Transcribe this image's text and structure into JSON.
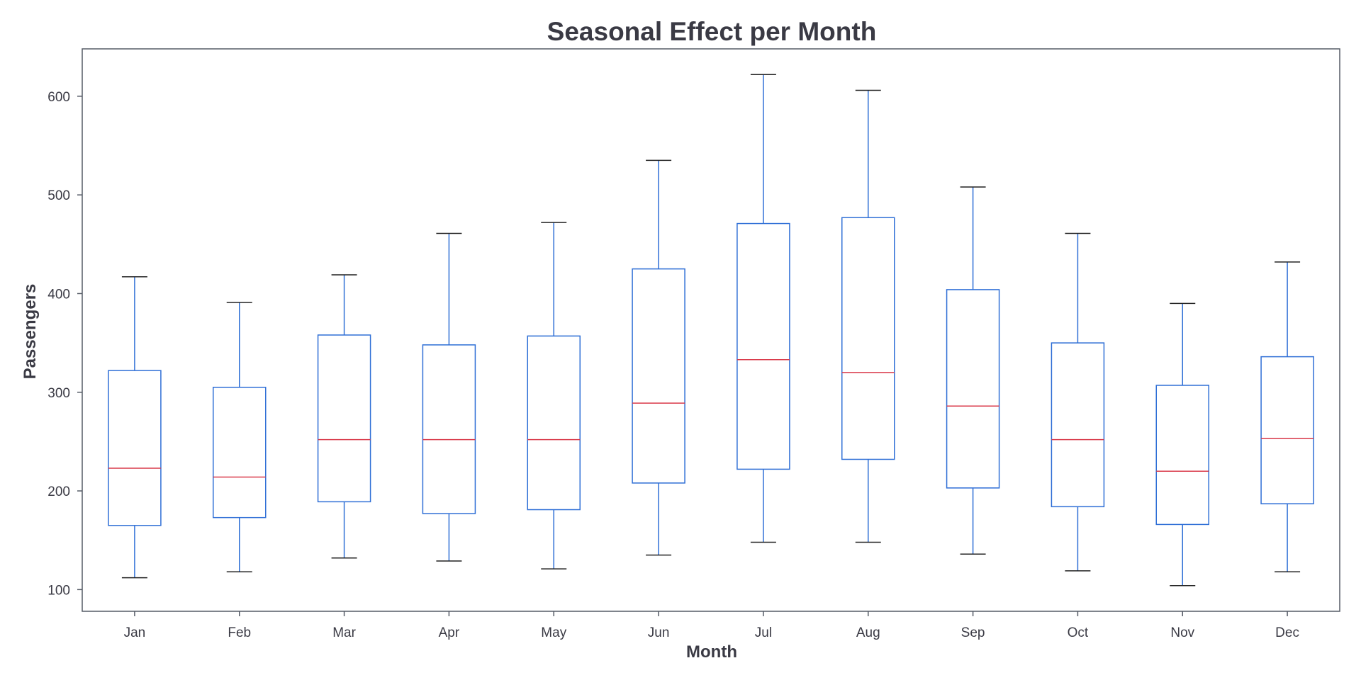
{
  "chart_data": {
    "type": "box",
    "title": "Seasonal Effect per Month",
    "xlabel": "Month",
    "ylabel": "Passengers",
    "ylim": [
      78,
      648
    ],
    "yticks": [
      100,
      200,
      300,
      400,
      500,
      600
    ],
    "grid": false,
    "legend": "none",
    "categories": [
      "Jan",
      "Feb",
      "Mar",
      "Apr",
      "May",
      "Jun",
      "Jul",
      "Aug",
      "Sep",
      "Oct",
      "Nov",
      "Dec"
    ],
    "boxes": [
      {
        "label": "Jan",
        "min": 112,
        "q1": 165,
        "median": 223,
        "q3": 322,
        "max": 417
      },
      {
        "label": "Feb",
        "min": 118,
        "q1": 173,
        "median": 214,
        "q3": 305,
        "max": 391
      },
      {
        "label": "Mar",
        "min": 132,
        "q1": 189,
        "median": 252,
        "q3": 358,
        "max": 419
      },
      {
        "label": "Apr",
        "min": 129,
        "q1": 177,
        "median": 252,
        "q3": 348,
        "max": 461
      },
      {
        "label": "May",
        "min": 121,
        "q1": 181,
        "median": 252,
        "q3": 357,
        "max": 472
      },
      {
        "label": "Jun",
        "min": 135,
        "q1": 208,
        "median": 289,
        "q3": 425,
        "max": 535
      },
      {
        "label": "Jul",
        "min": 148,
        "q1": 222,
        "median": 333,
        "q3": 471,
        "max": 622
      },
      {
        "label": "Aug",
        "min": 148,
        "q1": 232,
        "median": 320,
        "q3": 477,
        "max": 606
      },
      {
        "label": "Sep",
        "min": 136,
        "q1": 203,
        "median": 286,
        "q3": 404,
        "max": 508
      },
      {
        "label": "Oct",
        "min": 119,
        "q1": 184,
        "median": 252,
        "q3": 350,
        "max": 461
      },
      {
        "label": "Nov",
        "min": 104,
        "q1": 166,
        "median": 220,
        "q3": 307,
        "max": 390
      },
      {
        "label": "Dec",
        "min": 118,
        "q1": 187,
        "median": 253,
        "q3": 336,
        "max": 432
      }
    ],
    "colors": {
      "box": "#2f6fd6",
      "whisker": "#2f6fd6",
      "cap": "#222222",
      "median": "#d93a4a",
      "frame": "#555b66",
      "text": "#3a3a44"
    }
  }
}
